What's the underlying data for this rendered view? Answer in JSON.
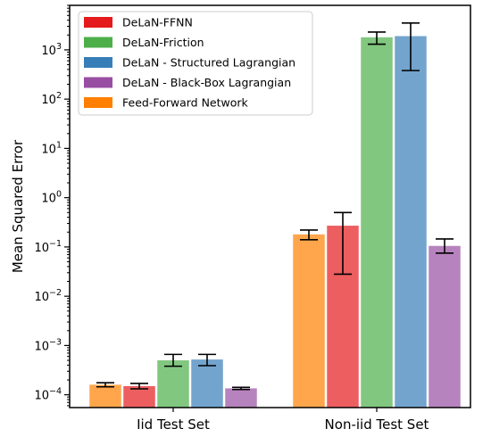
{
  "chart_data": {
    "type": "bar",
    "ylabel": "Mean Squared Error",
    "xlabel": "",
    "yscale": "log",
    "ylim": [
      5.5e-05,
      8000
    ],
    "grid": false,
    "legend_placement": "top-left",
    "categories": [
      "Iid Test Set",
      "Non-iid Test Set"
    ],
    "y_ticks": [
      {
        "value": 0.0001,
        "base": "10",
        "exp": "−4"
      },
      {
        "value": 0.001,
        "base": "10",
        "exp": "−3"
      },
      {
        "value": 0.01,
        "base": "10",
        "exp": "−2"
      },
      {
        "value": 0.1,
        "base": "10",
        "exp": "−1"
      },
      {
        "value": 1,
        "base": "10",
        "exp": "0"
      },
      {
        "value": 10,
        "base": "10",
        "exp": "1"
      },
      {
        "value": 100,
        "base": "10",
        "exp": "2"
      },
      {
        "value": 1000,
        "base": "10",
        "exp": "3"
      }
    ],
    "legend": [
      {
        "name": "DeLaN-FFNN",
        "color": "#e41a1c"
      },
      {
        "name": "DeLaN-Friction",
        "color": "#4daf4a"
      },
      {
        "name": "DeLaN - Structured Lagrangian",
        "color": "#377eb8"
      },
      {
        "name": "DeLaN - Black-Box Lagrangian",
        "color": "#984ea3"
      },
      {
        "name": "Feed-Forward Network",
        "color": "#ff7f00"
      }
    ],
    "series": [
      {
        "name": "Feed-Forward Network",
        "color": "#ff7f00",
        "values": [
          0.00016,
          0.18
        ],
        "err_low": [
          0.000145,
          0.14
        ],
        "err_high": [
          0.000175,
          0.22
        ]
      },
      {
        "name": "DeLaN-FFNN",
        "color": "#e41a1c",
        "values": [
          0.00015,
          0.27
        ],
        "err_low": [
          0.000132,
          0.028
        ],
        "err_high": [
          0.00017,
          0.5
        ]
      },
      {
        "name": "DeLaN-Friction",
        "color": "#4daf4a",
        "values": [
          0.0005,
          1800
        ],
        "err_low": [
          0.00038,
          1300
        ],
        "err_high": [
          0.00066,
          2300
        ]
      },
      {
        "name": "DeLaN - Structured Lagrangian",
        "color": "#377eb8",
        "values": [
          0.00052,
          1900
        ],
        "err_low": [
          0.00039,
          380
        ],
        "err_high": [
          0.00066,
          3500
        ]
      },
      {
        "name": "DeLaN - Black-Box Lagrangian",
        "color": "#984ea3",
        "values": [
          0.000135,
          0.105
        ],
        "err_low": [
          0.000128,
          0.075
        ],
        "err_high": [
          0.000142,
          0.145
        ]
      }
    ]
  }
}
